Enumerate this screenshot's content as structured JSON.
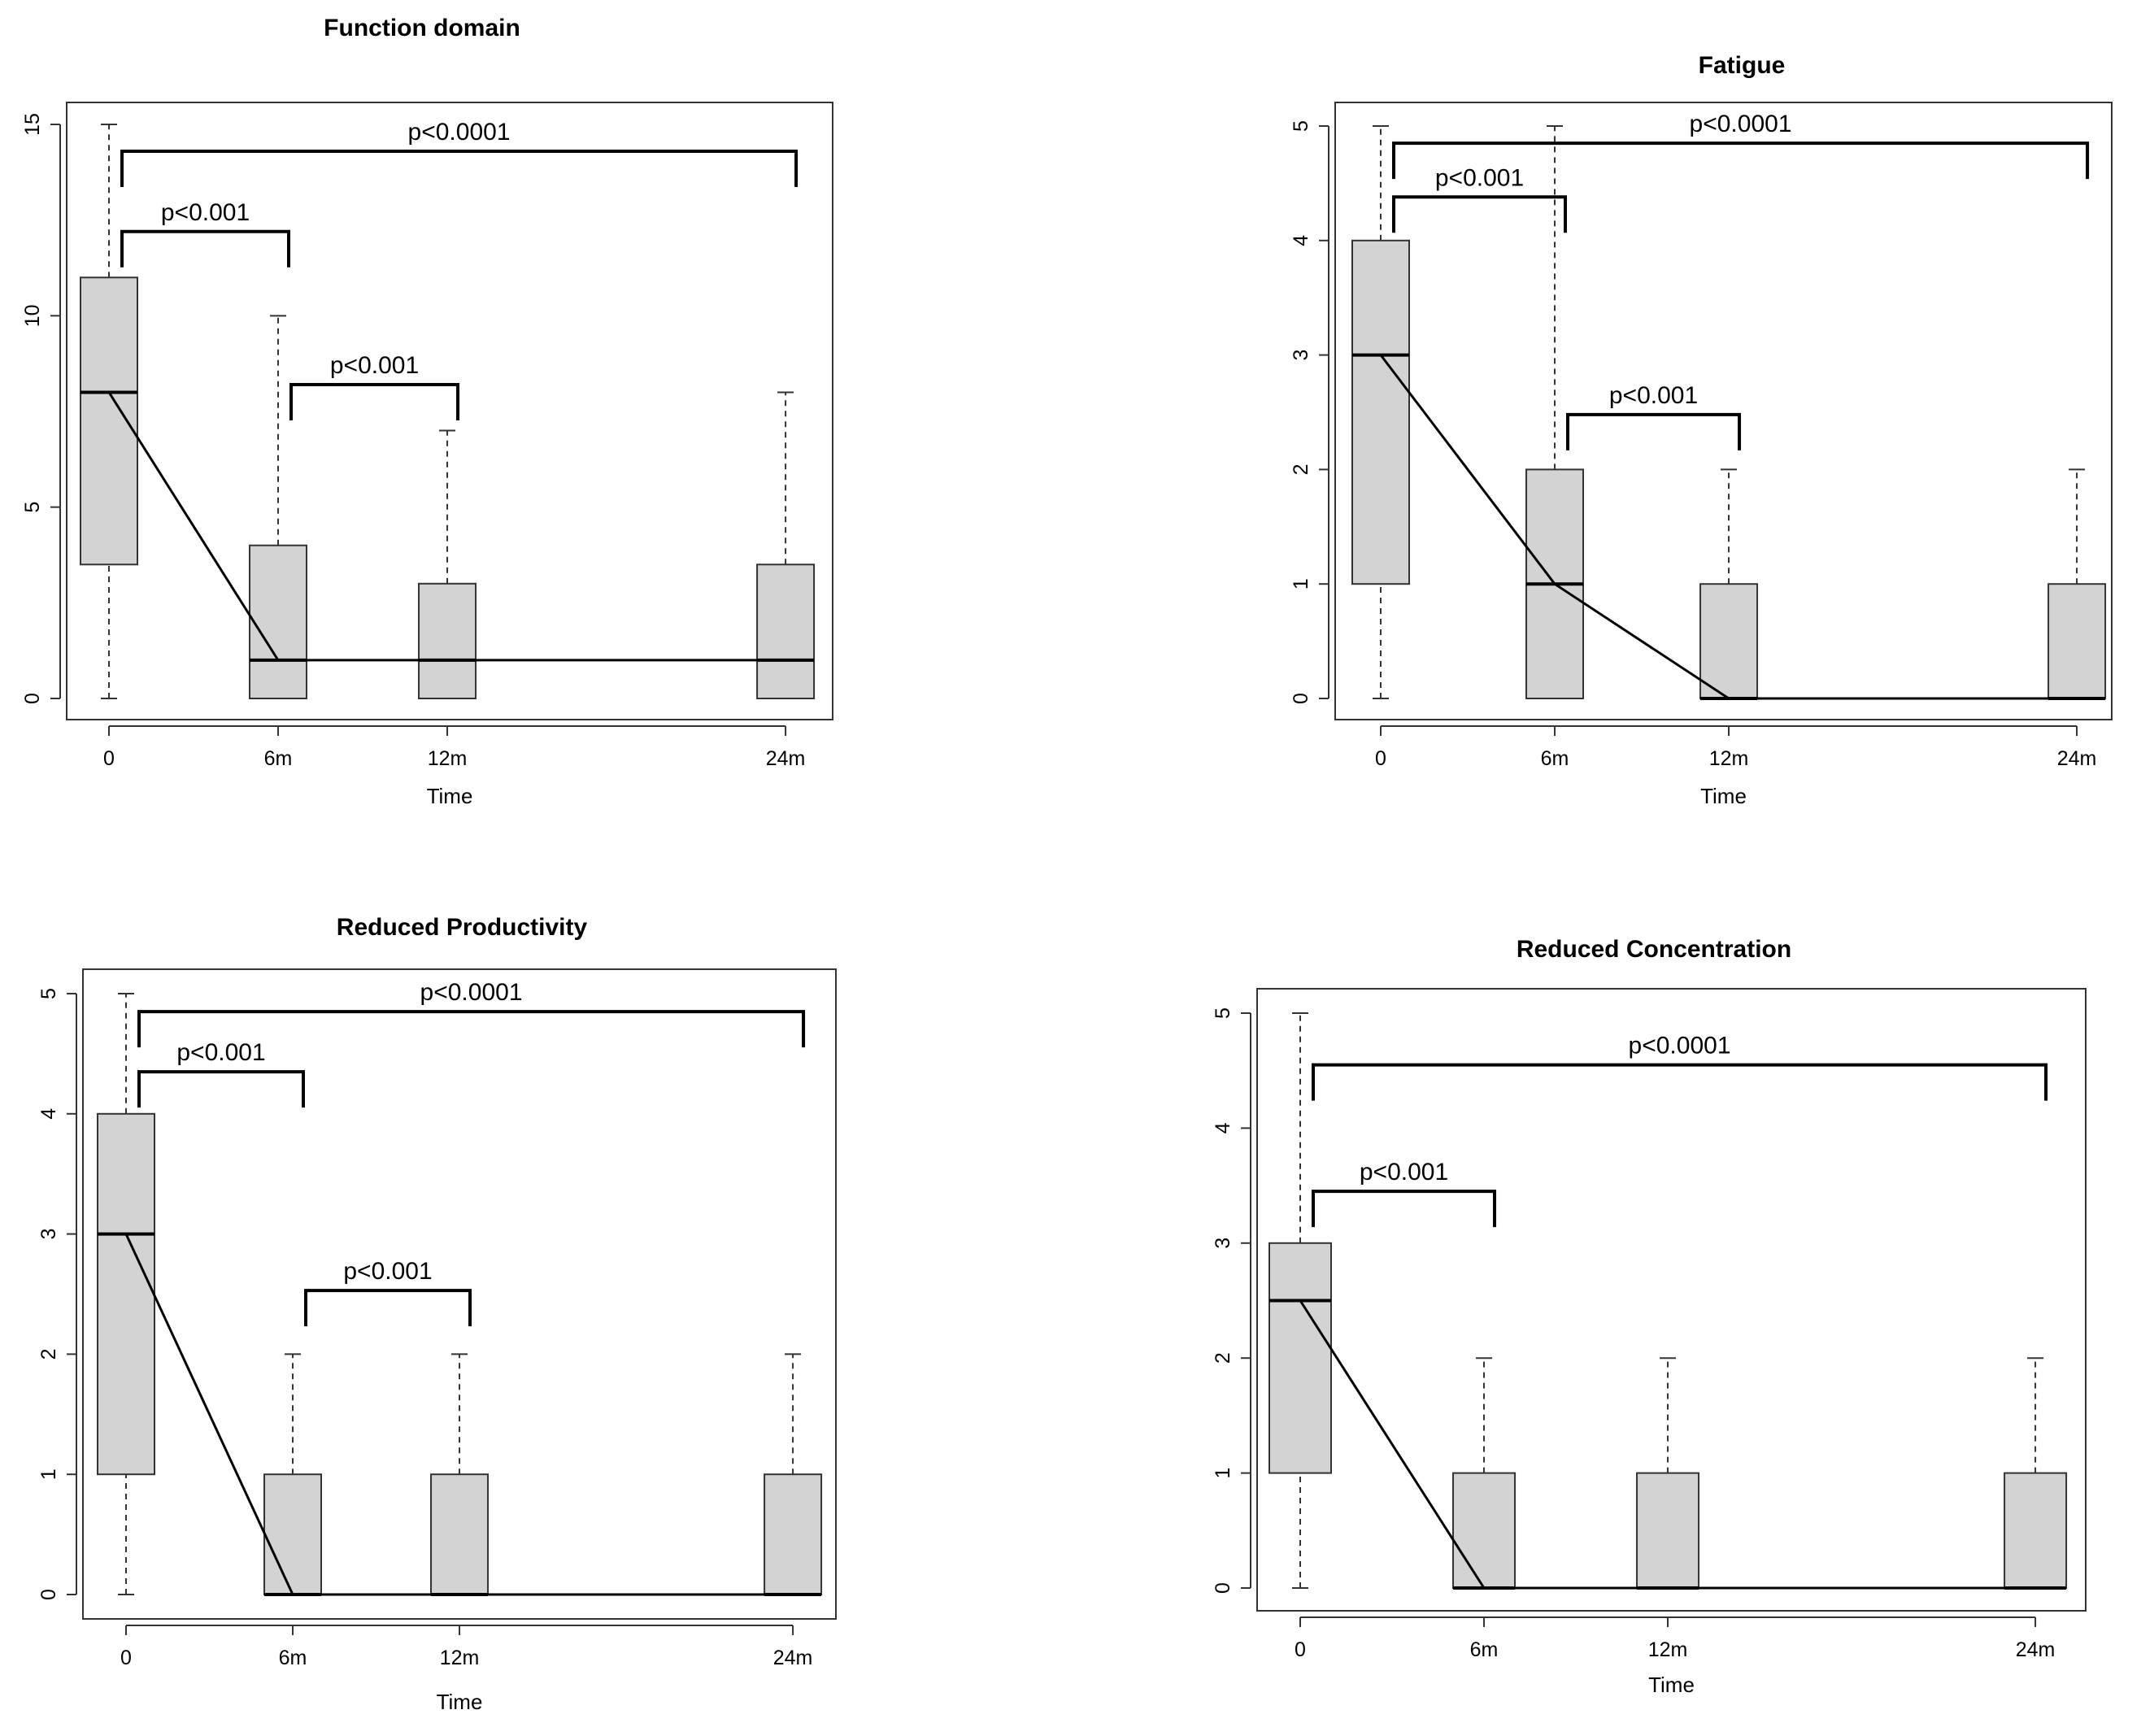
{
  "chart_data": [
    {
      "type": "box",
      "title": "Function domain",
      "xlabel": "Time",
      "ylabel": "",
      "categories": [
        "0",
        "6m",
        "12m",
        "24m"
      ],
      "x": [
        0,
        6,
        12,
        24
      ],
      "yticks": [
        0,
        5,
        10,
        15
      ],
      "ylim": [
        0,
        15
      ],
      "boxes": [
        {
          "time": "0",
          "min": 0,
          "q1": 3.5,
          "median": 8,
          "q3": 11,
          "max": 15
        },
        {
          "time": "6m",
          "min": 0,
          "q1": 0,
          "median": 1,
          "q3": 4,
          "max": 10
        },
        {
          "time": "12m",
          "min": 0,
          "q1": 0,
          "median": 1,
          "q3": 3,
          "max": 7
        },
        {
          "time": "24m",
          "min": 0,
          "q1": 0,
          "median": 1,
          "q3": 3.5,
          "max": 8
        }
      ],
      "median_line": [
        8,
        1,
        1,
        1
      ],
      "comparisons": [
        {
          "from": "0",
          "to": "24m",
          "label": "p<0.0001",
          "level": 14.3
        },
        {
          "from": "0",
          "to": "6m",
          "label": "p<0.001",
          "level": 12.2
        },
        {
          "from": "6m",
          "to": "12m",
          "label": "p<0.001",
          "level": 8.2
        }
      ]
    },
    {
      "type": "box",
      "title": "Fatigue",
      "xlabel": "Time",
      "ylabel": "",
      "categories": [
        "0",
        "6m",
        "12m",
        "24m"
      ],
      "x": [
        0,
        6,
        12,
        24
      ],
      "yticks": [
        0,
        1,
        2,
        3,
        4,
        5
      ],
      "ylim": [
        0,
        5
      ],
      "boxes": [
        {
          "time": "0",
          "min": 0,
          "q1": 1,
          "median": 3,
          "q3": 4,
          "max": 5
        },
        {
          "time": "6m",
          "min": 0,
          "q1": 0,
          "median": 1,
          "q3": 2,
          "max": 5
        },
        {
          "time": "12m",
          "min": 0,
          "q1": 0,
          "median": 0,
          "q3": 1,
          "max": 2
        },
        {
          "time": "24m",
          "min": 0,
          "q1": 0,
          "median": 0,
          "q3": 1,
          "max": 2
        }
      ],
      "median_line": [
        3,
        1,
        0,
        0
      ],
      "comparisons": [
        {
          "from": "0",
          "to": "24m",
          "label": "p<0.0001",
          "level": 4.85
        },
        {
          "from": "0",
          "to": "6m",
          "label": "p<0.001",
          "level": 4.38
        },
        {
          "from": "6m",
          "to": "12m",
          "label": "p<0.001",
          "level": 2.48
        }
      ]
    },
    {
      "type": "box",
      "title": "Reduced Productivity",
      "xlabel": "Time",
      "ylabel": "",
      "categories": [
        "0",
        "6m",
        "12m",
        "24m"
      ],
      "x": [
        0,
        6,
        12,
        24
      ],
      "yticks": [
        0,
        1,
        2,
        3,
        4,
        5
      ],
      "ylim": [
        0,
        5
      ],
      "boxes": [
        {
          "time": "0",
          "min": 0,
          "q1": 1,
          "median": 3,
          "q3": 4,
          "max": 5
        },
        {
          "time": "6m",
          "min": 0,
          "q1": 0,
          "median": 0,
          "q3": 1,
          "max": 2
        },
        {
          "time": "12m",
          "min": 0,
          "q1": 0,
          "median": 0,
          "q3": 1,
          "max": 2
        },
        {
          "time": "24m",
          "min": 0,
          "q1": 0,
          "median": 0,
          "q3": 1,
          "max": 2
        }
      ],
      "median_line": [
        3,
        0,
        0,
        0
      ],
      "comparisons": [
        {
          "from": "0",
          "to": "24m",
          "label": "p<0.0001",
          "level": 4.85
        },
        {
          "from": "0",
          "to": "6m",
          "label": "p<0.001",
          "level": 4.35
        },
        {
          "from": "6m",
          "to": "12m",
          "label": "p<0.001",
          "level": 2.53
        }
      ]
    },
    {
      "type": "box",
      "title": "Reduced Concentration",
      "xlabel": "Time",
      "ylabel": "",
      "categories": [
        "0",
        "6m",
        "12m",
        "24m"
      ],
      "x": [
        0,
        6,
        12,
        24
      ],
      "yticks": [
        0,
        1,
        2,
        3,
        4,
        5
      ],
      "ylim": [
        0,
        5
      ],
      "boxes": [
        {
          "time": "0",
          "min": 0,
          "q1": 1,
          "median": 2.5,
          "q3": 3,
          "max": 5
        },
        {
          "time": "6m",
          "min": 0,
          "q1": 0,
          "median": 0,
          "q3": 1,
          "max": 2
        },
        {
          "time": "12m",
          "min": 0,
          "q1": 0,
          "median": 0,
          "q3": 1,
          "max": 2
        },
        {
          "time": "24m",
          "min": 0,
          "q1": 0,
          "median": 0,
          "q3": 1,
          "max": 2
        }
      ],
      "median_line": [
        2.5,
        0,
        0,
        0
      ],
      "comparisons": [
        {
          "from": "0",
          "to": "24m",
          "label": "p<0.0001",
          "level": 4.55
        },
        {
          "from": "0",
          "to": "6m",
          "label": "p<0.001",
          "level": 3.45
        }
      ]
    }
  ],
  "style": {
    "box_fill": "#d3d3d3",
    "line_color": "#000000"
  }
}
